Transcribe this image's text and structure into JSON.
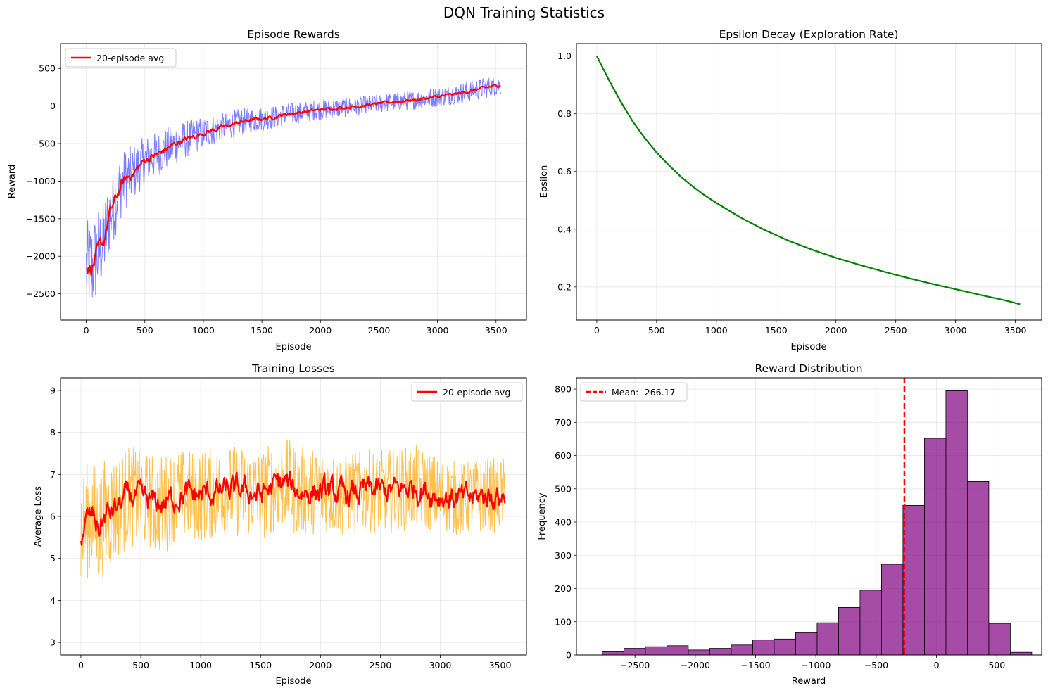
{
  "figure": {
    "title": "DQN Training Statistics"
  },
  "chart_data": [
    {
      "type": "line",
      "title": "Episode Rewards",
      "xlabel": "Episode",
      "ylabel": "Reward",
      "xlim": [
        -220,
        3760
      ],
      "ylim": [
        -2850,
        830
      ],
      "xticks": [
        0,
        500,
        1000,
        1500,
        2000,
        2500,
        3000,
        3500
      ],
      "yticks": [
        -2500,
        -2000,
        -1500,
        -1000,
        -500,
        0,
        500
      ],
      "grid": true,
      "legend": {
        "position": "upper-left",
        "entries": [
          "20-episode avg"
        ]
      },
      "series": [
        {
          "name": "",
          "color": "#4444ff",
          "style": "raw",
          "x": [
            0,
            50,
            100,
            150,
            200,
            250,
            300,
            350,
            400,
            500,
            600,
            700,
            800,
            900,
            1000,
            1100,
            1200,
            1300,
            1400,
            1500,
            1600,
            1700,
            1800,
            1900,
            2000,
            2200,
            2400,
            2600,
            2800,
            3000,
            3200,
            3400,
            3540
          ],
          "y": [
            -2150,
            -2150,
            -1950,
            -1800,
            -1450,
            -1250,
            -1050,
            -950,
            -900,
            -720,
            -650,
            -560,
            -470,
            -420,
            -360,
            -310,
            -270,
            -220,
            -190,
            -170,
            -150,
            -110,
            -90,
            -70,
            -50,
            -20,
            10,
            50,
            80,
            120,
            170,
            240,
            280
          ],
          "spread": [
            620,
            650,
            620,
            560,
            520,
            480,
            440,
            400,
            380,
            320,
            300,
            280,
            260,
            240,
            220,
            200,
            190,
            180,
            170,
            160,
            155,
            150,
            145,
            140,
            135,
            130,
            125,
            125,
            125,
            130,
            135,
            140,
            140
          ]
        },
        {
          "name": "20-episode avg",
          "color": "#ff0000",
          "style": "avg",
          "x": [
            0,
            50,
            100,
            150,
            200,
            250,
            300,
            350,
            400,
            500,
            600,
            700,
            800,
            900,
            1000,
            1100,
            1200,
            1300,
            1400,
            1500,
            1600,
            1700,
            1800,
            1900,
            2000,
            2200,
            2400,
            2600,
            2800,
            3000,
            3200,
            3400,
            3540
          ],
          "y": [
            -2150,
            -2150,
            -1950,
            -1800,
            -1450,
            -1250,
            -1050,
            -950,
            -900,
            -720,
            -650,
            -560,
            -470,
            -420,
            -360,
            -310,
            -270,
            -220,
            -190,
            -170,
            -150,
            -110,
            -90,
            -70,
            -50,
            -20,
            10,
            50,
            80,
            120,
            170,
            240,
            280
          ],
          "spread": [
            80,
            80,
            80,
            70,
            70,
            60,
            55,
            50,
            45,
            40,
            35,
            32,
            30,
            28,
            26,
            24,
            22,
            20,
            20,
            18,
            18,
            18,
            16,
            16,
            16,
            15,
            15,
            15,
            15,
            15,
            15,
            15,
            15
          ]
        }
      ]
    },
    {
      "type": "line",
      "title": "Epsilon Decay (Exploration Rate)",
      "xlabel": "Episode",
      "ylabel": "Epsilon",
      "xlim": [
        -170,
        3720
      ],
      "ylim": [
        0.085,
        1.043
      ],
      "xticks": [
        0,
        500,
        1000,
        1500,
        2000,
        2500,
        3000,
        3500
      ],
      "yticks": [
        0.2,
        0.4,
        0.6,
        0.8,
        1.0
      ],
      "grid": true,
      "series": [
        {
          "name": "",
          "color": "#008000",
          "x": [
            0,
            100,
            200,
            300,
            400,
            500,
            600,
            700,
            800,
            900,
            1000,
            1200,
            1400,
            1600,
            1800,
            2000,
            2200,
            2400,
            2600,
            2800,
            3000,
            3200,
            3400,
            3540
          ],
          "y": [
            1.0,
            0.918,
            0.842,
            0.774,
            0.716,
            0.666,
            0.623,
            0.583,
            0.549,
            0.518,
            0.491,
            0.441,
            0.398,
            0.361,
            0.329,
            0.301,
            0.276,
            0.253,
            0.231,
            0.211,
            0.192,
            0.173,
            0.155,
            0.14
          ]
        }
      ]
    },
    {
      "type": "line",
      "title": "Training Losses",
      "xlabel": "Episode",
      "ylabel": "Average Loss",
      "xlim": [
        -170,
        3720
      ],
      "ylim": [
        2.7,
        9.3
      ],
      "xticks": [
        0,
        500,
        1000,
        1500,
        2000,
        2500,
        3000,
        3500
      ],
      "yticks": [
        3,
        4,
        5,
        6,
        7,
        8,
        9
      ],
      "grid": true,
      "legend": {
        "position": "upper-right",
        "entries": [
          "20-episode avg"
        ]
      },
      "series": [
        {
          "name": "",
          "color": "#ffa500",
          "style": "raw",
          "x": [
            0,
            50,
            100,
            150,
            200,
            300,
            400,
            500,
            600,
            700,
            800,
            900,
            1000,
            1200,
            1400,
            1500,
            1600,
            1700,
            1800,
            2000,
            2200,
            2400,
            2600,
            2800,
            3000,
            3200,
            3400,
            3540
          ],
          "y": [
            5.6,
            5.9,
            6.0,
            5.7,
            6.0,
            6.2,
            6.5,
            6.4,
            6.3,
            6.3,
            6.5,
            6.5,
            6.5,
            6.6,
            6.6,
            6.5,
            6.7,
            6.8,
            6.6,
            6.6,
            6.5,
            6.6,
            6.6,
            6.7,
            6.5,
            6.4,
            6.5,
            6.5
          ],
          "spread": [
            1.4,
            1.4,
            1.4,
            1.4,
            1.4,
            1.3,
            1.2,
            1.2,
            1.2,
            1.2,
            1.1,
            1.1,
            1.1,
            1.1,
            1.1,
            1.1,
            1.1,
            1.1,
            1.1,
            1.0,
            1.0,
            1.0,
            1.0,
            1.0,
            0.9,
            0.9,
            0.9,
            0.9
          ]
        },
        {
          "name": "20-episode avg",
          "color": "#ff0000",
          "style": "avg",
          "x": [
            0,
            50,
            100,
            150,
            200,
            300,
            400,
            500,
            600,
            700,
            800,
            900,
            1000,
            1200,
            1400,
            1500,
            1600,
            1700,
            1800,
            2000,
            2200,
            2400,
            2600,
            2800,
            3000,
            3200,
            3400,
            3540
          ],
          "y": [
            5.6,
            5.9,
            6.0,
            5.7,
            6.0,
            6.2,
            6.5,
            6.4,
            6.3,
            6.3,
            6.5,
            6.5,
            6.5,
            6.6,
            6.6,
            6.5,
            6.7,
            6.8,
            6.6,
            6.6,
            6.5,
            6.6,
            6.6,
            6.7,
            6.5,
            6.4,
            6.5,
            6.5
          ],
          "spread": [
            0.25,
            0.25,
            0.25,
            0.25,
            0.25,
            0.25,
            0.25,
            0.25,
            0.25,
            0.25,
            0.25,
            0.25,
            0.25,
            0.25,
            0.25,
            0.25,
            0.25,
            0.25,
            0.25,
            0.25,
            0.25,
            0.25,
            0.25,
            0.25,
            0.25,
            0.25,
            0.25,
            0.25
          ]
        }
      ]
    },
    {
      "type": "bar",
      "subtype": "histogram",
      "title": "Reward Distribution",
      "xlabel": "Reward",
      "ylabel": "Frequency",
      "xlim": [
        -2985,
        872
      ],
      "ylim": [
        0,
        834
      ],
      "xticks": [
        -2500,
        -2000,
        -1500,
        -1000,
        -500,
        0,
        500
      ],
      "yticks": [
        0,
        100,
        200,
        300,
        400,
        500,
        600,
        700,
        800
      ],
      "grid": true,
      "bin_edges": [
        -2770,
        -2592,
        -2414,
        -2236,
        -2058,
        -1880,
        -1702,
        -1524,
        -1346,
        -1168,
        -990,
        -812,
        -634,
        -456,
        -278,
        -100,
        78,
        256,
        434,
        612,
        790
      ],
      "values": [
        10,
        20,
        25,
        28,
        15,
        20,
        30,
        45,
        48,
        67,
        97,
        143,
        195,
        273,
        450,
        652,
        795,
        522,
        95,
        8
      ],
      "bar_color": "#800080",
      "mean": -266.17,
      "legend": {
        "position": "upper-left",
        "entries": [
          "Mean: -266.17"
        ]
      }
    }
  ]
}
